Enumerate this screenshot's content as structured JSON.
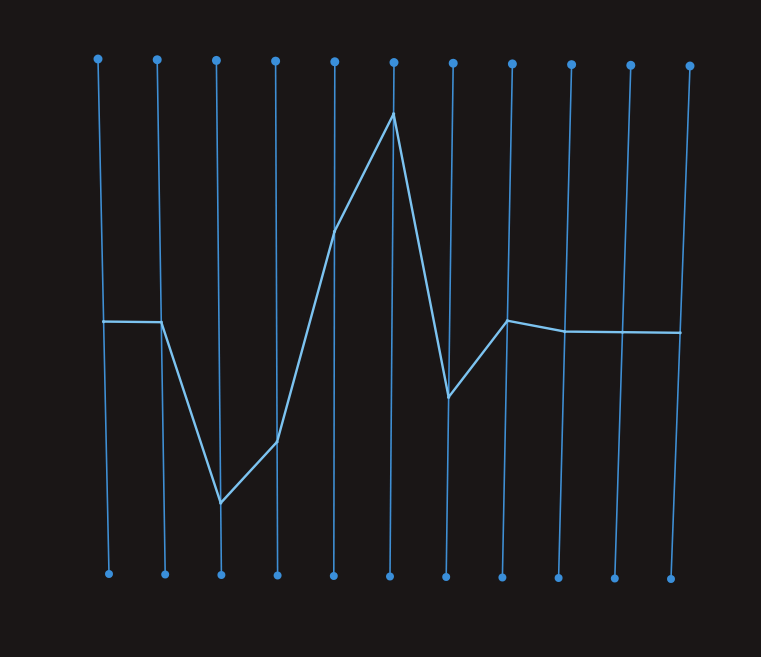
{
  "colors": {
    "background": "#1a1616",
    "axis_line": "#3f8fd4",
    "axis_dot": "#3a8fda",
    "series_line": "#7cc3f0"
  },
  "chart_data": {
    "type": "line",
    "title": "",
    "xlabel": "",
    "ylabel": "",
    "grid": false,
    "legend": "none",
    "x": [
      1,
      2,
      3,
      4,
      5,
      6,
      7,
      8,
      9,
      10,
      11
    ],
    "ylim": [
      0,
      1
    ],
    "series": [
      {
        "values": [
          0.49,
          0.49,
          0.14,
          0.26,
          0.67,
          0.9,
          0.35,
          0.5,
          0.48,
          0.48,
          0.48
        ]
      }
    ]
  }
}
